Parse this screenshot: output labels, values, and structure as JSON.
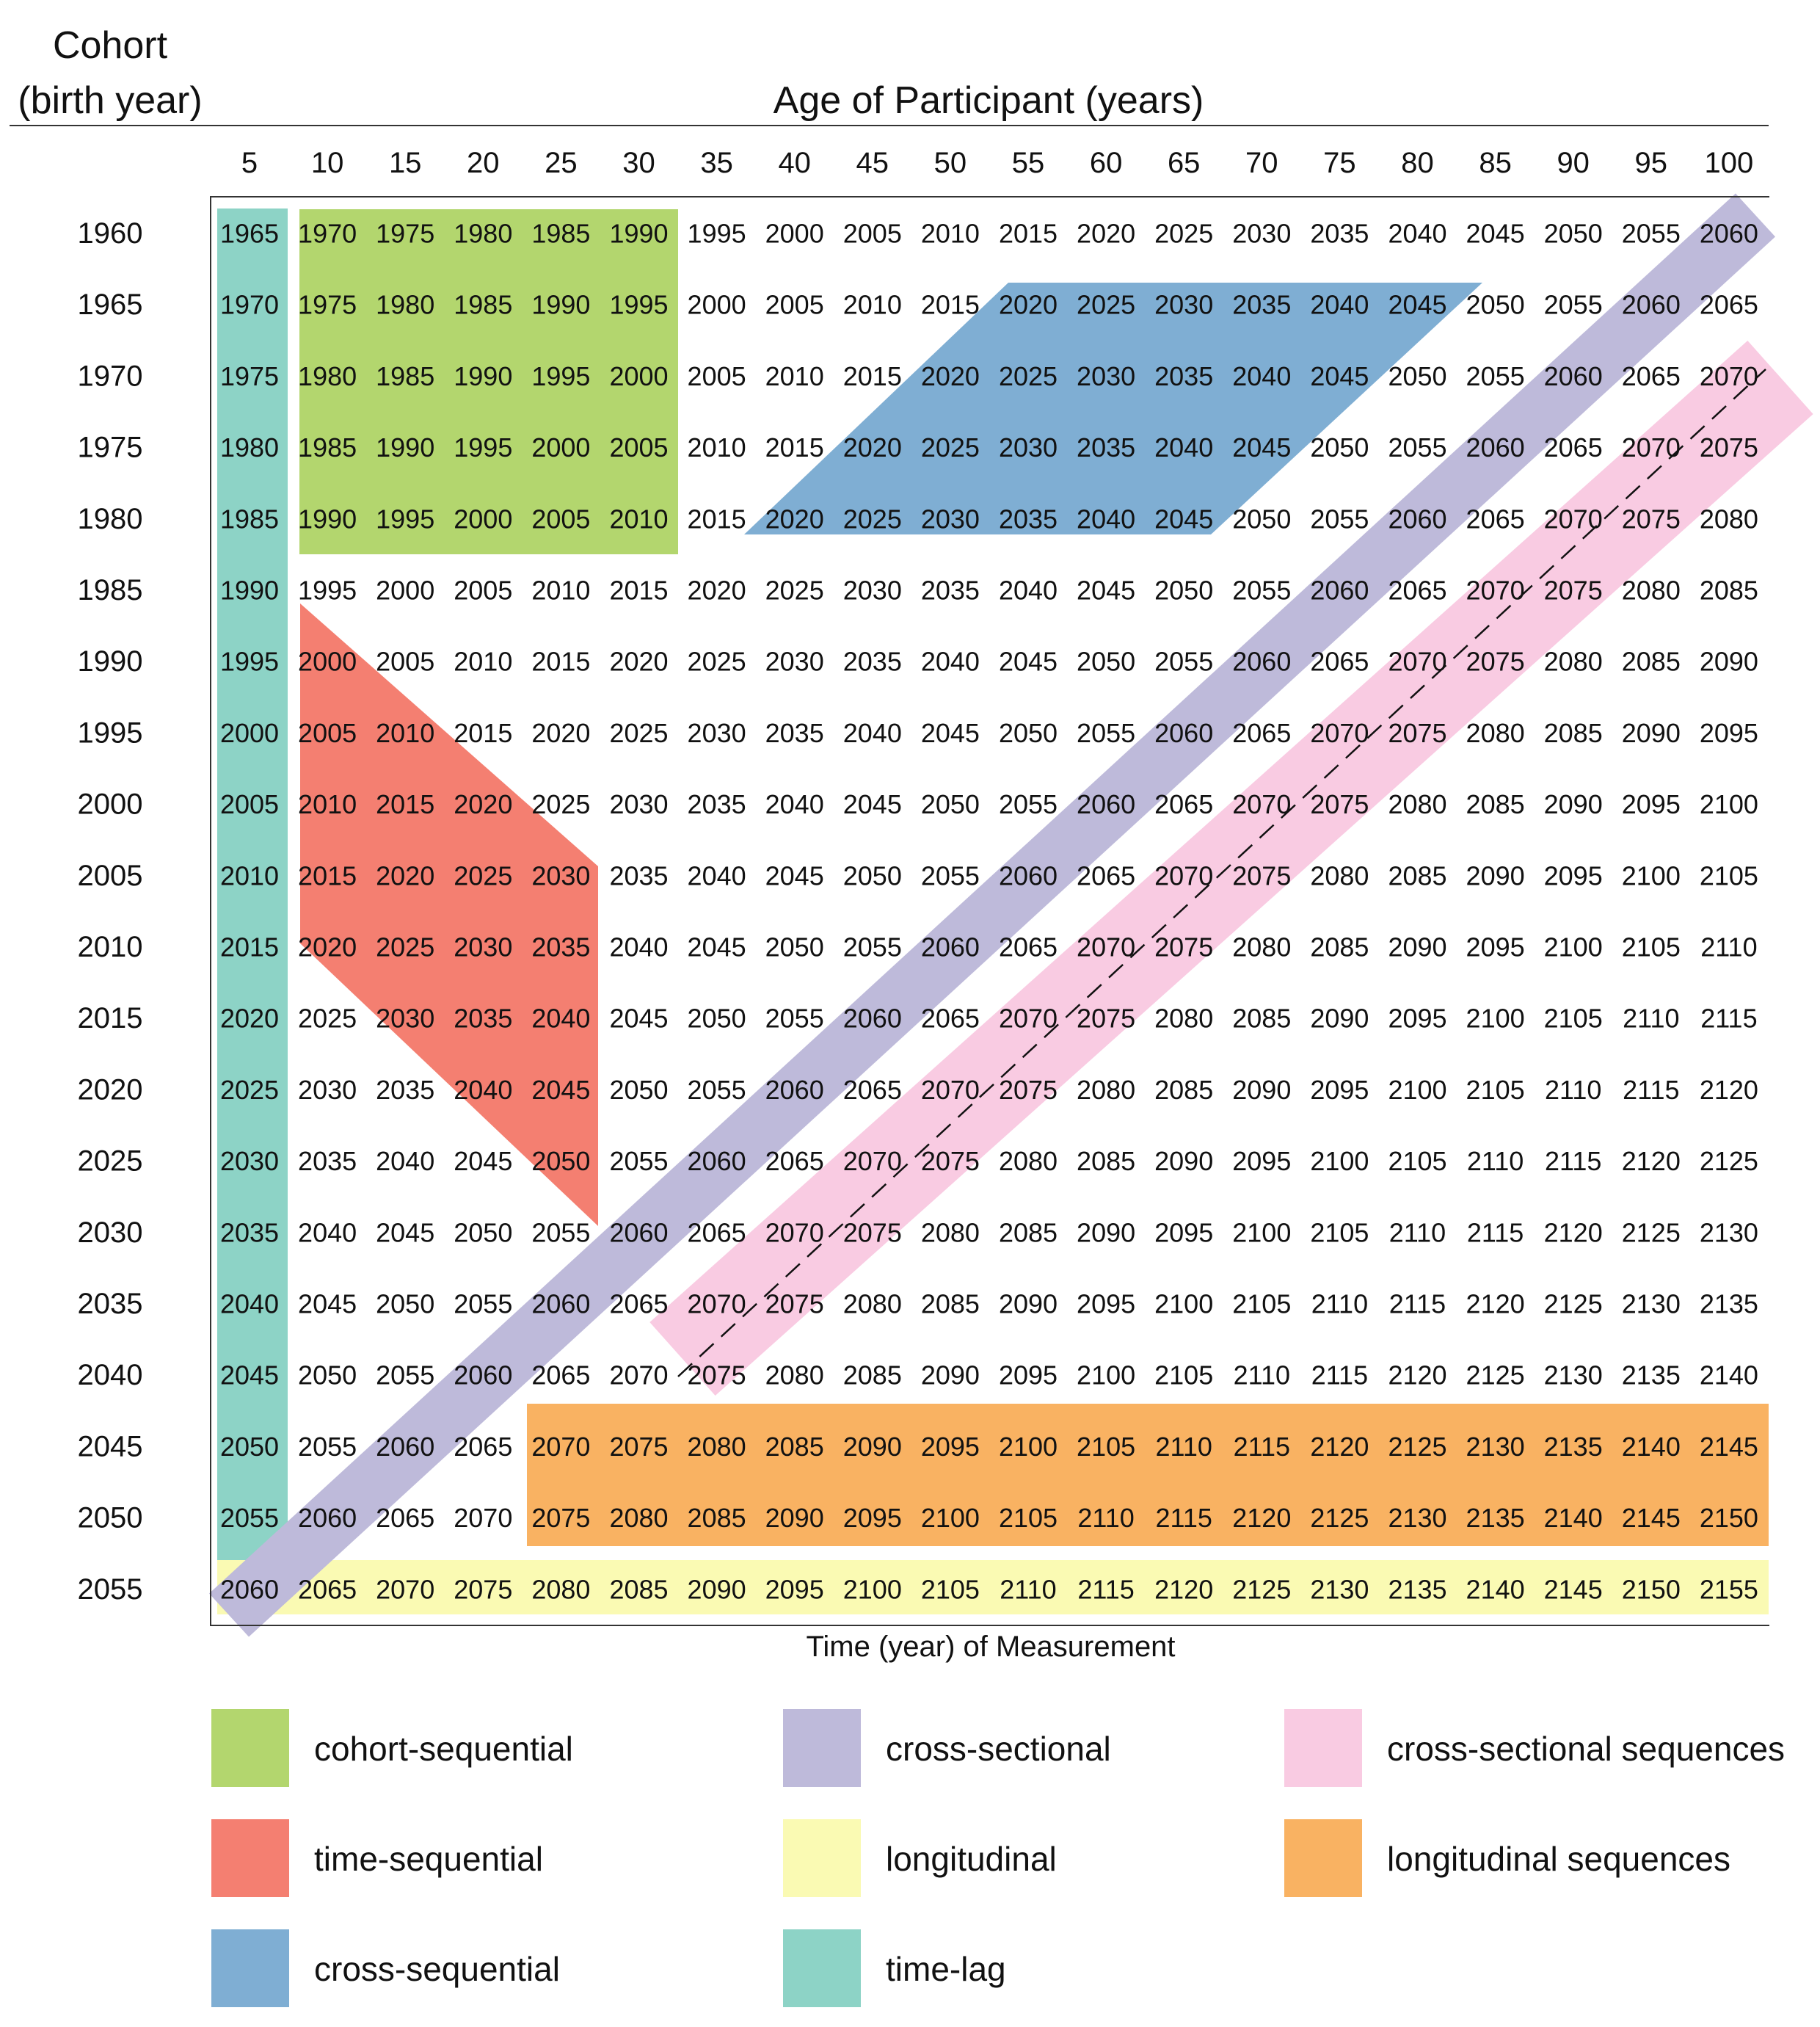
{
  "titles": {
    "cohort_line1": "Cohort",
    "cohort_line2": "(birth year)",
    "age_title": "Age of Participant (years)",
    "x_axis_label": "Time (year) of Measurement"
  },
  "ages": [
    "5",
    "10",
    "15",
    "20",
    "25",
    "30",
    "35",
    "40",
    "45",
    "50",
    "55",
    "60",
    "65",
    "70",
    "75",
    "80",
    "85",
    "90",
    "95",
    "100"
  ],
  "cohorts": [
    "1960",
    "1965",
    "1970",
    "1975",
    "1980",
    "1985",
    "1990",
    "1995",
    "2000",
    "2005",
    "2010",
    "2015",
    "2020",
    "2025",
    "2030",
    "2035",
    "2040",
    "2045",
    "2050",
    "2055"
  ],
  "cell_rule": "measurement year = cohort + age",
  "colors": {
    "cohort_sequential": "#b3d66e",
    "time_sequential": "#f47f71",
    "cross_sequential": "#7faed3",
    "time_lag": "#8dd3c6",
    "cross_sectional": "#bebada",
    "longitudinal": "#fafab3",
    "cross_sectional_sequences": "#f9cbe2",
    "longitudinal_sequences": "#f9b262"
  },
  "legend": [
    {
      "key": "cohort_sequential",
      "label": "cohort-sequential"
    },
    {
      "key": "cross_sectional",
      "label": "cross-sectional"
    },
    {
      "key": "cross_sectional_sequences",
      "label": "cross-sectional sequences"
    },
    {
      "key": "time_sequential",
      "label": "time-sequential"
    },
    {
      "key": "longitudinal",
      "label": "longitudinal"
    },
    {
      "key": "longitudinal_sequences",
      "label": "longitudinal sequences"
    },
    {
      "key": "cross_sequential",
      "label": "cross-sequential"
    },
    {
      "key": "time_lag",
      "label": "time-lag"
    }
  ]
}
